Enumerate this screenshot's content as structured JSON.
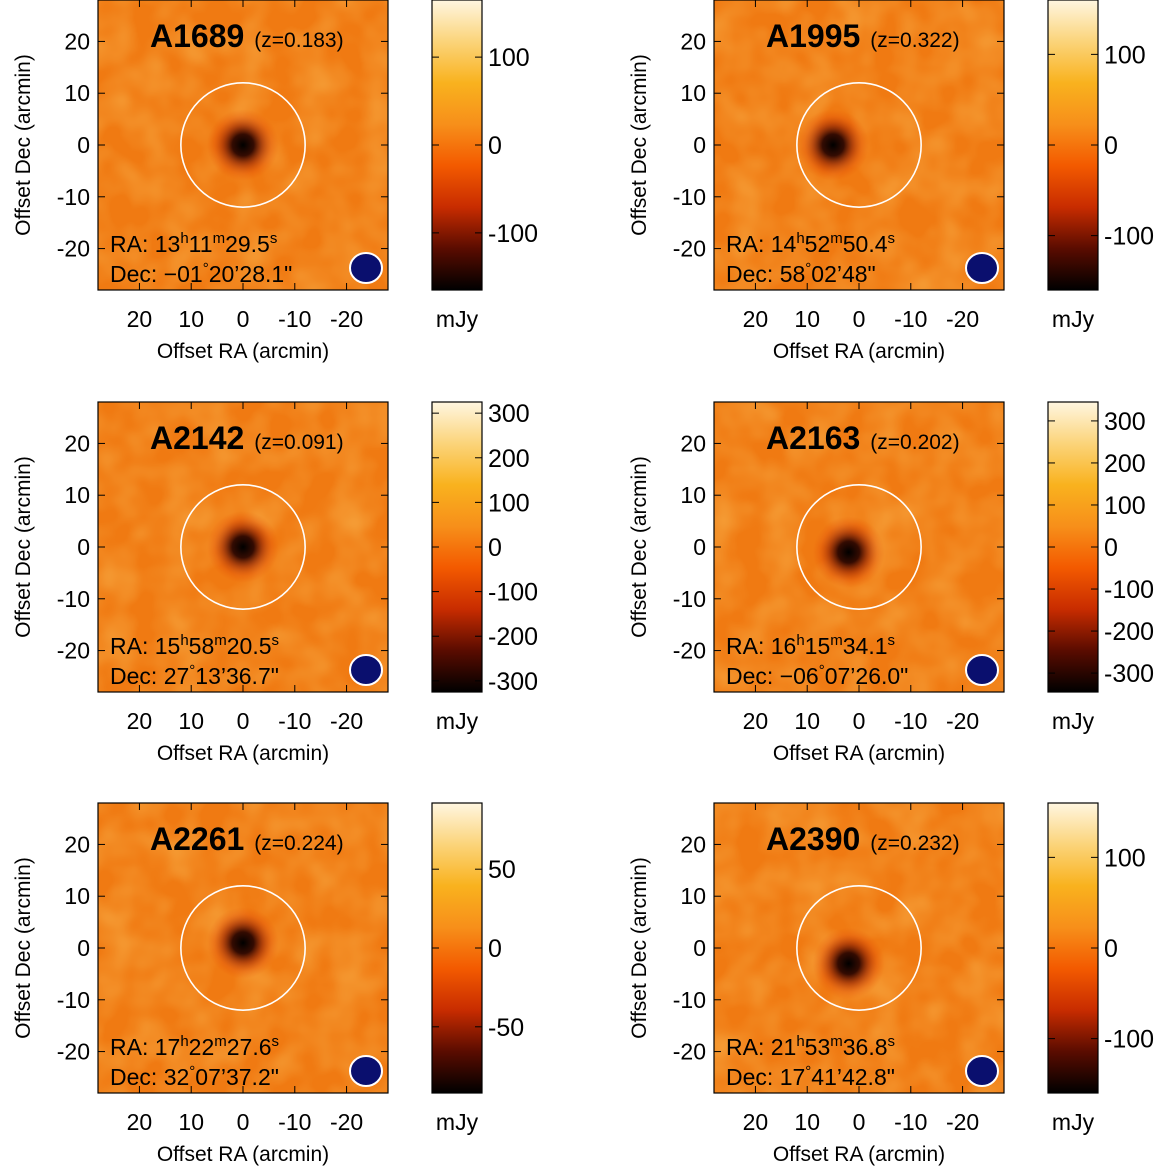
{
  "colors": {
    "colormap": [
      "#000000",
      "#5a0c00",
      "#c82c00",
      "#f35a00",
      "#f78f1a",
      "#f9b21e",
      "#fbd47a",
      "#fff6e0"
    ],
    "beam_fill": "#0a0f6e",
    "beam_edge": "#ffffff",
    "aperture": "#ffffff"
  },
  "chart_data": [
    {
      "type": "heatmap",
      "cluster": "A1689",
      "redshift_label": "(z=0.183)",
      "ra": {
        "prefix": "RA: ",
        "h": "13",
        "m": "11",
        "s": "29.5"
      },
      "dec": {
        "prefix": "Dec: ",
        "deg": "−01",
        "rest": "20’28.1\""
      },
      "xlabel": "Offset RA (arcmin)",
      "ylabel": "Offset Dec (arcmin)",
      "x_ticks": [
        "20",
        "10",
        "0",
        "-10",
        "-20"
      ],
      "y_ticks": [
        "20",
        "10",
        "0",
        "-10",
        "-20"
      ],
      "xlim": [
        28,
        -28
      ],
      "ylim": [
        -28,
        28
      ],
      "colorbar": {
        "unit": "mJy",
        "range": [
          -165,
          165
        ],
        "ticks": [
          100,
          0,
          -100
        ],
        "tick_labels": [
          "100",
          "0",
          "-100"
        ]
      },
      "aperture_radius_arcmin": 12,
      "source_peak_arcmin": [
        0,
        0
      ],
      "source_peak_mJy": -165
    },
    {
      "type": "heatmap",
      "cluster": "A1995",
      "redshift_label": "(z=0.322)",
      "ra": {
        "prefix": "RA: ",
        "h": "14",
        "m": "52",
        "s": "50.4"
      },
      "dec": {
        "prefix": "Dec: ",
        "deg": "58",
        "rest": "02’48\""
      },
      "xlabel": "Offset RA (arcmin)",
      "ylabel": "Offset Dec (arcmin)",
      "x_ticks": [
        "20",
        "10",
        "0",
        "-10",
        "-20"
      ],
      "y_ticks": [
        "20",
        "10",
        "0",
        "-10",
        "-20"
      ],
      "xlim": [
        28,
        -28
      ],
      "ylim": [
        -28,
        28
      ],
      "colorbar": {
        "unit": "mJy",
        "range": [
          -160,
          160
        ],
        "ticks": [
          100,
          0,
          -100
        ],
        "tick_labels": [
          "100",
          "0",
          "-100"
        ]
      },
      "aperture_radius_arcmin": 12,
      "source_peak_arcmin": [
        5,
        0
      ],
      "source_peak_mJy": -160
    },
    {
      "type": "heatmap",
      "cluster": "A2142",
      "redshift_label": "(z=0.091)",
      "ra": {
        "prefix": "RA: ",
        "h": "15",
        "m": "58",
        "s": "20.5"
      },
      "dec": {
        "prefix": "Dec: ",
        "deg": "27",
        "rest": "13’36.7\""
      },
      "xlabel": "Offset RA (arcmin)",
      "ylabel": "Offset Dec (arcmin)",
      "x_ticks": [
        "20",
        "10",
        "0",
        "-10",
        "-20"
      ],
      "y_ticks": [
        "20",
        "10",
        "0",
        "-10",
        "-20"
      ],
      "xlim": [
        28,
        -28
      ],
      "ylim": [
        -28,
        28
      ],
      "colorbar": {
        "unit": "mJy",
        "range": [
          -325,
          325
        ],
        "ticks": [
          300,
          200,
          100,
          0,
          -100,
          -200,
          -300
        ],
        "tick_labels": [
          "300",
          "200",
          "100",
          "0",
          "-100",
          "-200",
          "-300"
        ]
      },
      "aperture_radius_arcmin": 12,
      "source_peak_arcmin": [
        0,
        0
      ],
      "source_peak_mJy": -325
    },
    {
      "type": "heatmap",
      "cluster": "A2163",
      "redshift_label": "(z=0.202)",
      "ra": {
        "prefix": "RA: ",
        "h": "16",
        "m": "15",
        "s": "34.1"
      },
      "dec": {
        "prefix": "Dec: ",
        "deg": "−06",
        "rest": "07’26.0\""
      },
      "xlabel": "Offset RA (arcmin)",
      "ylabel": "Offset Dec (arcmin)",
      "x_ticks": [
        "20",
        "10",
        "0",
        "-10",
        "-20"
      ],
      "y_ticks": [
        "20",
        "10",
        "0",
        "-10",
        "-20"
      ],
      "xlim": [
        28,
        -28
      ],
      "ylim": [
        -28,
        28
      ],
      "colorbar": {
        "unit": "mJy",
        "range": [
          -345,
          345
        ],
        "ticks": [
          300,
          200,
          100,
          0,
          -100,
          -200,
          -300
        ],
        "tick_labels": [
          "300",
          "200",
          "100",
          "0",
          "-100",
          "-200",
          "-300"
        ]
      },
      "aperture_radius_arcmin": 12,
      "source_peak_arcmin": [
        2,
        -1
      ],
      "source_peak_mJy": -345
    },
    {
      "type": "heatmap",
      "cluster": "A2261",
      "redshift_label": "(z=0.224)",
      "ra": {
        "prefix": "RA: ",
        "h": "17",
        "m": "22",
        "s": "27.6"
      },
      "dec": {
        "prefix": "Dec: ",
        "deg": "32",
        "rest": "07’37.2\""
      },
      "xlabel": "Offset RA (arcmin)",
      "ylabel": "Offset Dec (arcmin)",
      "x_ticks": [
        "20",
        "10",
        "0",
        "-10",
        "-20"
      ],
      "y_ticks": [
        "20",
        "10",
        "0",
        "-10",
        "-20"
      ],
      "xlim": [
        28,
        -28
      ],
      "ylim": [
        -28,
        28
      ],
      "colorbar": {
        "unit": "mJy",
        "range": [
          -92,
          92
        ],
        "ticks": [
          50,
          0,
          -50
        ],
        "tick_labels": [
          "50",
          "0",
          "-50"
        ]
      },
      "aperture_radius_arcmin": 12,
      "source_peak_arcmin": [
        0,
        1
      ],
      "source_peak_mJy": -92
    },
    {
      "type": "heatmap",
      "cluster": "A2390",
      "redshift_label": "(z=0.232)",
      "ra": {
        "prefix": "RA: ",
        "h": "21",
        "m": "53",
        "s": "36.8"
      },
      "dec": {
        "prefix": "Dec: ",
        "deg": "17",
        "rest": "41’42.8\""
      },
      "xlabel": "Offset RA (arcmin)",
      "ylabel": "Offset Dec (arcmin)",
      "x_ticks": [
        "20",
        "10",
        "0",
        "-10",
        "-20"
      ],
      "y_ticks": [
        "20",
        "10",
        "0",
        "-10",
        "-20"
      ],
      "xlim": [
        28,
        -28
      ],
      "ylim": [
        -28,
        28
      ],
      "colorbar": {
        "unit": "mJy",
        "range": [
          -160,
          160
        ],
        "ticks": [
          100,
          0,
          -100
        ],
        "tick_labels": [
          "100",
          "0",
          "-100"
        ]
      },
      "aperture_radius_arcmin": 12,
      "source_peak_arcmin": [
        2,
        -3
      ],
      "source_peak_mJy": -160
    }
  ]
}
